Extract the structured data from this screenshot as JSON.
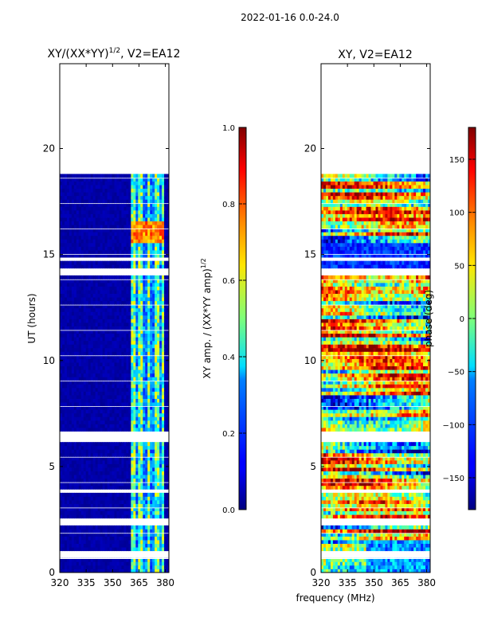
{
  "suptitle": "2022-01-16 0.0-24.0",
  "chart_data": [
    {
      "type": "heatmap",
      "title_main": "XY/(XX*YY)",
      "title_sup": "1/2",
      "title_suffix": ", V2=EA12",
      "xlabel": "",
      "ylabel": "UT (hours)",
      "xlim": [
        320,
        382
      ],
      "ylim": [
        0,
        24
      ],
      "xticks": [
        "320",
        "335",
        "350",
        "365",
        "380"
      ],
      "xtick_values": [
        320,
        335,
        350,
        365,
        380
      ],
      "yticks": [
        "0",
        "5",
        "10",
        "15",
        "20"
      ],
      "ytick_values": [
        0,
        5,
        10,
        15,
        20
      ],
      "data_top_hour": 18.8,
      "colorbar": {
        "label_main": "XY amp. / (XX*YY amp)",
        "label_sup": "1/2",
        "range": [
          0,
          1
        ],
        "ticks": [
          "0.0",
          "0.2",
          "0.4",
          "0.6",
          "0.8",
          "1.0"
        ],
        "tick_values": [
          0,
          0.2,
          0.4,
          0.6,
          0.8,
          1.0
        ]
      }
    },
    {
      "type": "heatmap",
      "title": "XY, V2=EA12",
      "xlabel": "frequency (MHz)",
      "ylabel": "",
      "xlim": [
        320,
        382
      ],
      "ylim": [
        0,
        24
      ],
      "xticks": [
        "320",
        "335",
        "350",
        "365",
        "380"
      ],
      "xtick_values": [
        320,
        335,
        350,
        365,
        380
      ],
      "yticks": [
        "0",
        "5",
        "10",
        "15",
        "20"
      ],
      "ytick_values": [
        0,
        5,
        10,
        15,
        20
      ],
      "data_top_hour": 18.8,
      "colorbar": {
        "label": "phase (deg)",
        "range": [
          -180,
          180
        ],
        "ticks": [
          "−150",
          "−100",
          "−50",
          "0",
          "50",
          "100",
          "150"
        ],
        "tick_values": [
          -150,
          -100,
          -50,
          0,
          50,
          100,
          150
        ]
      }
    }
  ]
}
